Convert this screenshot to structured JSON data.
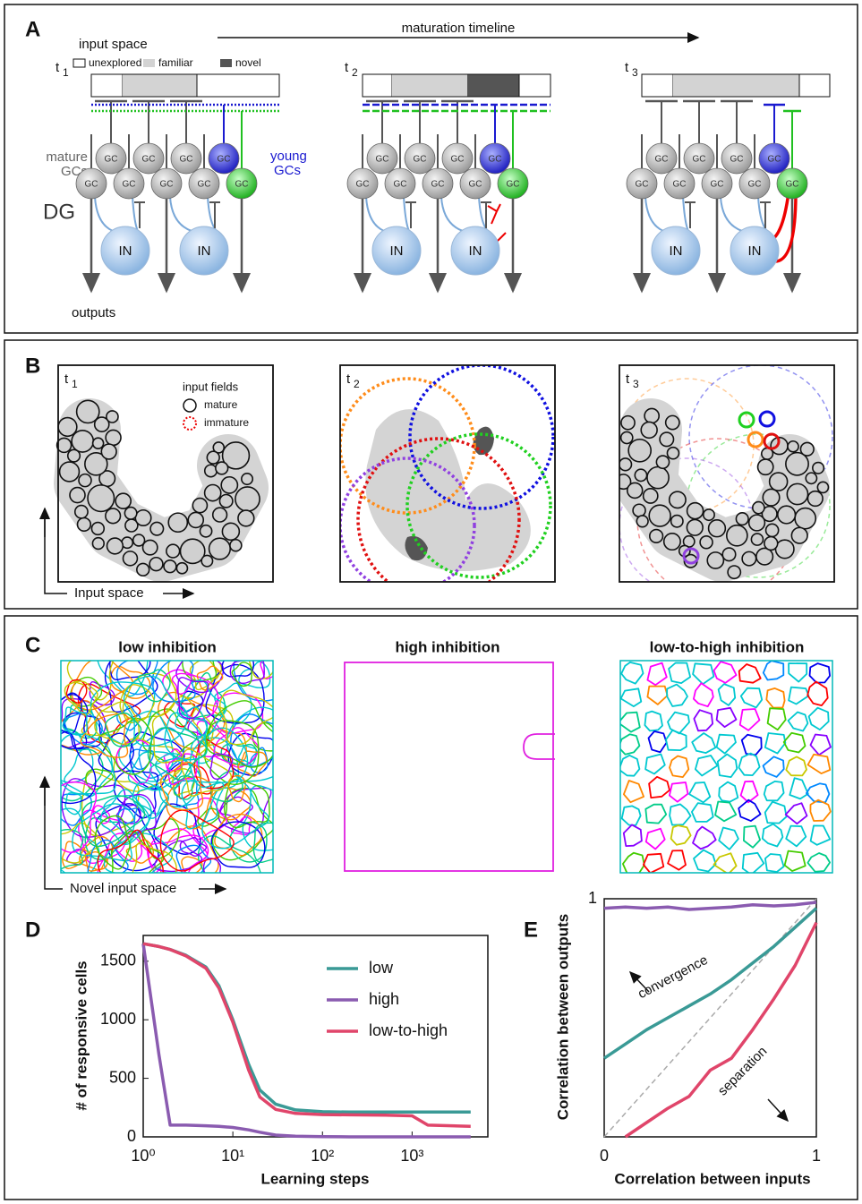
{
  "panel_a": {
    "letter": "A",
    "input_space": "input space",
    "timeline": "maturation timeline",
    "legend": [
      "unexplored",
      "familiar",
      "novel"
    ],
    "times": [
      {
        "t": "t",
        "sub": "1"
      },
      {
        "t": "t",
        "sub": "2"
      },
      {
        "t": "t",
        "sub": "3"
      }
    ],
    "mature_gcs": [
      "mature",
      "GCs"
    ],
    "young_gcs": [
      "young",
      "GCs"
    ],
    "region": "DG",
    "gc": "GC",
    "in": "IN",
    "outputs": "outputs"
  },
  "panel_b": {
    "letter": "B",
    "times": [
      {
        "t": "t",
        "sub": "1"
      },
      {
        "t": "t",
        "sub": "2"
      },
      {
        "t": "t",
        "sub": "3"
      }
    ],
    "legend_title": "input fields",
    "legend": [
      "mature",
      "immature"
    ],
    "axis": "Input space"
  },
  "panel_c": {
    "letter": "C",
    "titles": [
      "low inhibition",
      "high inhibition",
      "low-to-high inhibition"
    ],
    "axis": "Novel input space"
  },
  "chart_data": [
    {
      "letter": "D",
      "type": "line",
      "x_label": "Learning steps",
      "y_label": "# of responsive cells",
      "xscale": "log",
      "x": [
        1,
        1.5,
        2,
        3,
        5,
        7,
        10,
        15,
        20,
        30,
        50,
        100,
        200,
        500,
        1000,
        1500,
        4500
      ],
      "xlim": [
        1,
        7000
      ],
      "xticks": [
        {
          "value": 1,
          "label": "10⁰"
        },
        {
          "value": 10,
          "label": "10¹"
        },
        {
          "value": 100,
          "label": "10²"
        },
        {
          "value": 1000,
          "label": "10³"
        }
      ],
      "ylim": [
        0,
        1720
      ],
      "yticks": [
        0,
        500,
        1000,
        1500
      ],
      "legend": "upper right",
      "series": [
        {
          "name": "low",
          "color": "#3a9a96",
          "values": [
            1650,
            1625,
            1600,
            1550,
            1450,
            1290,
            1000,
            620,
            400,
            280,
            230,
            215,
            212,
            212,
            212,
            212,
            212
          ]
        },
        {
          "name": "high",
          "color": "#8a5bb0",
          "values": [
            1650,
            700,
            100,
            100,
            95,
            90,
            80,
            60,
            40,
            15,
            5,
            2,
            0,
            0,
            0,
            0,
            0
          ]
        },
        {
          "name": "low-to-high",
          "color": "#e0456a",
          "values": [
            1650,
            1625,
            1600,
            1545,
            1440,
            1270,
            980,
            570,
            340,
            235,
            200,
            190,
            188,
            185,
            180,
            100,
            90
          ]
        }
      ]
    },
    {
      "letter": "E",
      "type": "line",
      "x_label": "Correlation between inputs",
      "y_label": "Correlation between outputs",
      "x": [
        0,
        0.1,
        0.2,
        0.3,
        0.4,
        0.5,
        0.6,
        0.7,
        0.8,
        0.9,
        1
      ],
      "xlim": [
        0,
        1
      ],
      "ylim": [
        0,
        1
      ],
      "xticks": [
        0,
        1
      ],
      "yticks": [
        1
      ],
      "annotations": [
        "convergence",
        "separation"
      ],
      "series": [
        {
          "color": "#8a5bb0",
          "values": [
            0.96,
            0.965,
            0.96,
            0.965,
            0.955,
            0.96,
            0.965,
            0.975,
            0.97,
            0.975,
            0.985
          ]
        },
        {
          "color": "#3a9a96",
          "values": [
            0.33,
            0.39,
            0.45,
            0.5,
            0.55,
            0.6,
            0.66,
            0.73,
            0.8,
            0.88,
            0.96
          ]
        },
        {
          "color": "#e0456a",
          "values": [
            null,
            0,
            0.06,
            0.12,
            0.17,
            0.28,
            0.33,
            0.45,
            0.58,
            0.72,
            0.9
          ]
        }
      ]
    }
  ]
}
